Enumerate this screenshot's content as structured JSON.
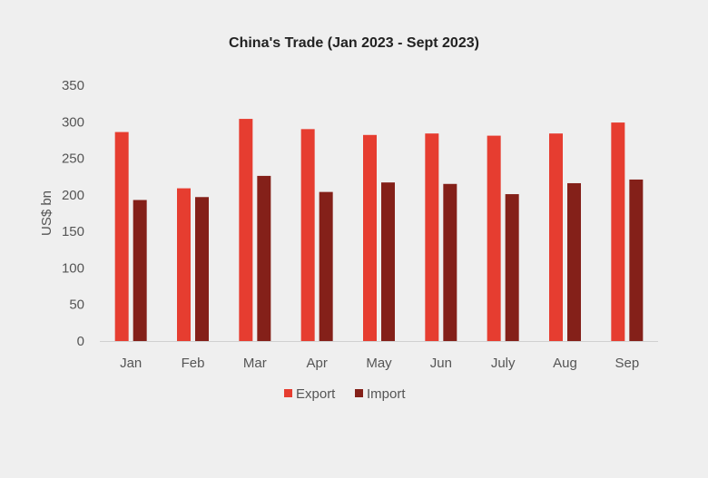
{
  "chart_data": {
    "type": "bar",
    "title": "China's Trade (Jan 2023 - Sept 2023)",
    "xlabel": "",
    "ylabel": "US$ bn",
    "categories": [
      "Jan",
      "Feb",
      "Mar",
      "Apr",
      "May",
      "Jun",
      "July",
      "Aug",
      "Sep"
    ],
    "series": [
      {
        "name": "Export",
        "color": "#e63d30",
        "values": [
          286,
          209,
          304,
          290,
          282,
          284,
          281,
          284,
          299
        ]
      },
      {
        "name": "Import",
        "color": "#842019",
        "values": [
          193,
          197,
          226,
          204,
          217,
          215,
          201,
          216,
          221
        ]
      }
    ],
    "ylim": [
      0,
      350
    ],
    "yticks": [
      0,
      50,
      100,
      150,
      200,
      250,
      300,
      350
    ],
    "grid": false,
    "legend_position": "bottom"
  }
}
